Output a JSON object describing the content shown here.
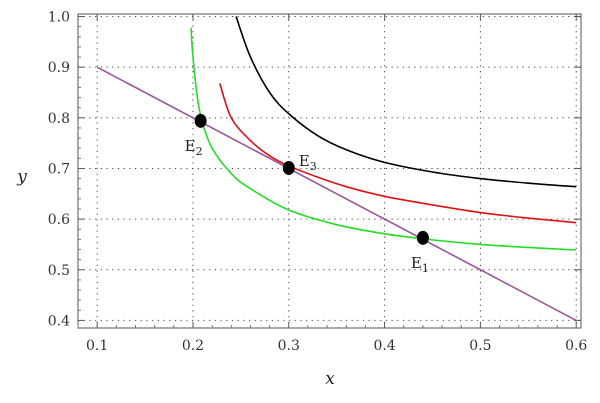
{
  "chart_data": {
    "type": "line",
    "title": "",
    "xlabel": "x",
    "ylabel": "y",
    "xlim": [
      0.08,
      0.605
    ],
    "ylim": [
      0.385,
      1.005
    ],
    "x_ticks": [
      0.1,
      0.2,
      0.3,
      0.4,
      0.5,
      0.6
    ],
    "y_ticks": [
      0.4,
      0.5,
      0.6,
      0.7,
      0.8,
      0.9,
      1.0
    ],
    "x_tick_labels": [
      "0.1",
      "0.2",
      "0.3",
      "0.4",
      "0.5",
      "0.6"
    ],
    "y_tick_labels": [
      "0.4",
      "0.5",
      "0.6",
      "0.7",
      "0.8",
      "0.9",
      "1.0"
    ],
    "grid": true,
    "grid_style": "dotted",
    "series": [
      {
        "color": "#000000",
        "x": [
          0.245,
          0.26,
          0.28,
          0.3,
          0.33,
          0.36,
          0.4,
          0.45,
          0.5,
          0.55,
          0.6
        ],
        "y": [
          1.0,
          0.92,
          0.85,
          0.808,
          0.765,
          0.737,
          0.712,
          0.693,
          0.68,
          0.671,
          0.664
        ]
      },
      {
        "color": "#dd1111",
        "x": [
          0.228,
          0.24,
          0.26,
          0.28,
          0.3,
          0.33,
          0.36,
          0.4,
          0.45,
          0.5,
          0.55,
          0.6
        ],
        "y": [
          0.868,
          0.8,
          0.755,
          0.725,
          0.705,
          0.683,
          0.664,
          0.645,
          0.628,
          0.613,
          0.602,
          0.593
        ]
      },
      {
        "color": "#22dd22",
        "x": [
          0.198,
          0.2,
          0.205,
          0.21,
          0.22,
          0.24,
          0.26,
          0.3,
          0.35,
          0.4,
          0.45,
          0.5,
          0.55,
          0.6
        ],
        "y": [
          0.978,
          0.92,
          0.835,
          0.79,
          0.74,
          0.69,
          0.66,
          0.618,
          0.589,
          0.571,
          0.559,
          0.55,
          0.544,
          0.539
        ]
      },
      {
        "color": "#995599",
        "x": [
          0.1,
          0.6
        ],
        "y": [
          0.9,
          0.4
        ]
      }
    ],
    "points": [
      {
        "label": "E",
        "sub": "1",
        "x": 0.44,
        "y": 0.563
      },
      {
        "label": "E",
        "sub": "2",
        "x": 0.208,
        "y": 0.794
      },
      {
        "label": "E",
        "sub": "3",
        "x": 0.3,
        "y": 0.701
      }
    ]
  }
}
